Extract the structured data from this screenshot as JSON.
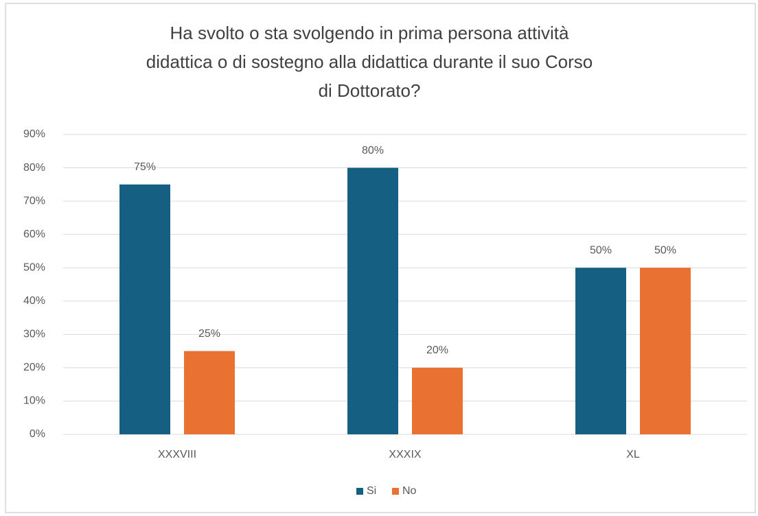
{
  "chart_data": {
    "type": "bar",
    "title": [
      "Ha svolto o sta svolgendo in prima persona attività",
      "didattica o di sostegno alla didattica durante il suo Corso",
      "di Dottorato?"
    ],
    "categories": [
      "XXXVIII",
      "XXXIX",
      "XL"
    ],
    "series": [
      {
        "name": "Si",
        "color": "#156082",
        "values": [
          75,
          80,
          50
        ],
        "value_labels": [
          "75%",
          "80%",
          "50%"
        ]
      },
      {
        "name": "No",
        "color": "#e97132",
        "values": [
          25,
          20,
          50
        ],
        "value_labels": [
          "25%",
          "20%",
          "50%"
        ]
      }
    ],
    "ylim": [
      0,
      90
    ],
    "yticks": [
      {
        "value": 0,
        "label": "0%"
      },
      {
        "value": 10,
        "label": "10%"
      },
      {
        "value": 20,
        "label": "20%"
      },
      {
        "value": 30,
        "label": "30%"
      },
      {
        "value": 40,
        "label": "40%"
      },
      {
        "value": 50,
        "label": "50%"
      },
      {
        "value": 60,
        "label": "60%"
      },
      {
        "value": 70,
        "label": "70%"
      },
      {
        "value": 80,
        "label": "80%"
      },
      {
        "value": 90,
        "label": "90%"
      }
    ],
    "grid": true,
    "legend": "bottom"
  }
}
